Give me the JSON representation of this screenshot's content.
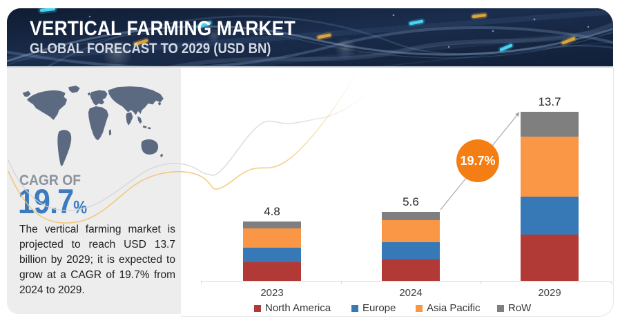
{
  "header": {
    "title": "VERTICAL FARMING MARKET",
    "subtitle": "GLOBAL FORECAST TO 2029 (USD BN)"
  },
  "sidebar": {
    "cagr_label": "CAGR OF",
    "cagr_value": "19.7",
    "cagr_percent_sign": "%",
    "description": "The vertical farming market is projected to reach USD 13.7 billion by 2029; it is expected to grow at a CAGR of 19.7% from 2024 to 2029."
  },
  "chart_data": {
    "type": "bar",
    "stacked": true,
    "title": "Vertical Farming Market",
    "unit": "USD BN",
    "categories": [
      "2023",
      "2024",
      "2029"
    ],
    "totals": [
      4.8,
      5.6,
      13.7
    ],
    "series": [
      {
        "name": "North America",
        "color": "#b23a36",
        "values": [
          1.5,
          1.75,
          3.75
        ]
      },
      {
        "name": "Europe",
        "color": "#3779b7",
        "values": [
          1.2,
          1.4,
          3.05
        ]
      },
      {
        "name": "Asia Pacific",
        "color": "#f99746",
        "values": [
          1.55,
          1.75,
          4.9
        ]
      },
      {
        "name": "RoW",
        "color": "#7f7f7f",
        "values": [
          0.55,
          0.7,
          2.0
        ]
      }
    ],
    "cagr_annotation": "19.7%",
    "legend_position": "bottom",
    "grid": false,
    "ylim": [
      0,
      14.5
    ]
  },
  "colors": {
    "accent_orange": "#f57e14",
    "cagr_blue": "#3a7cbe",
    "header_navy": "#14233d",
    "panel_gray": "#ededee",
    "map_slate": "#5c6a81",
    "axis_gray": "#d9d9d9"
  }
}
